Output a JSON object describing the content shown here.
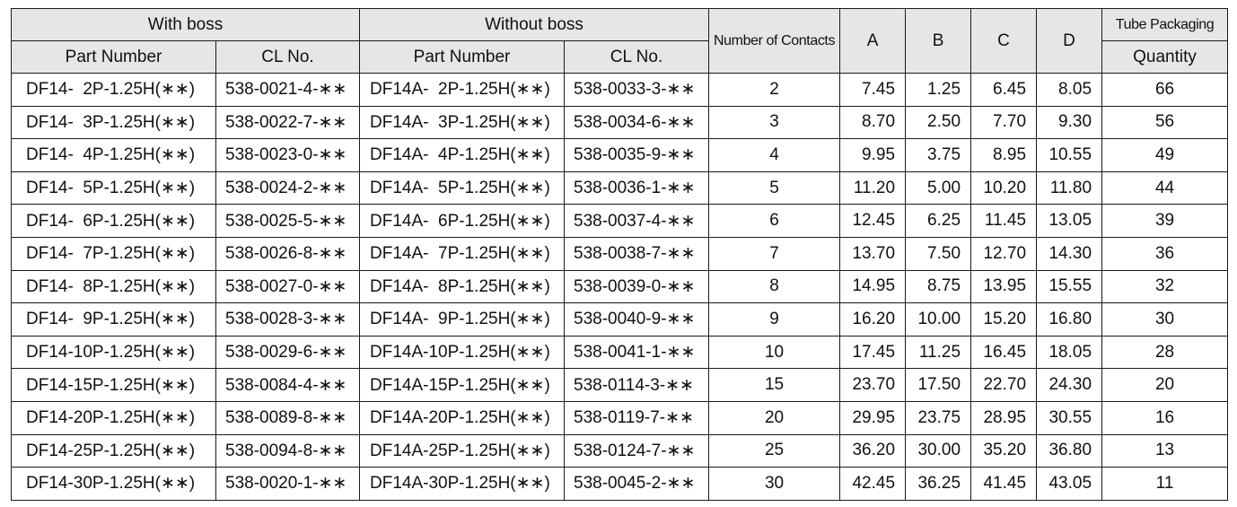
{
  "headers": {
    "with_boss": "With boss",
    "without_boss": "Without boss",
    "part_number": "Part Number",
    "cl_no": "CL No.",
    "part_number_2": "Part Number",
    "cl_no_2": "CL No.",
    "number_of_contacts": "Number of Contacts",
    "a": "A",
    "b": "B",
    "c": "C",
    "d": "D",
    "tube_packaging": "Tube Packaging",
    "quantity": "Quantity"
  },
  "rows": [
    {
      "pn_boss": "DF14-  2P-1.25H(∗∗)",
      "cl_boss": "538-0021-4-∗∗",
      "pn_noboss": "DF14A-  2P-1.25H(∗∗)",
      "cl_noboss": "538-0033-3-∗∗",
      "contacts": "2",
      "a": "7.45",
      "b": "1.25",
      "c": "6.45",
      "d": "8.05",
      "qty": "66"
    },
    {
      "pn_boss": "DF14-  3P-1.25H(∗∗)",
      "cl_boss": "538-0022-7-∗∗",
      "pn_noboss": "DF14A-  3P-1.25H(∗∗)",
      "cl_noboss": "538-0034-6-∗∗",
      "contacts": "3",
      "a": "8.70",
      "b": "2.50",
      "c": "7.70",
      "d": "9.30",
      "qty": "56"
    },
    {
      "pn_boss": "DF14-  4P-1.25H(∗∗)",
      "cl_boss": "538-0023-0-∗∗",
      "pn_noboss": "DF14A-  4P-1.25H(∗∗)",
      "cl_noboss": "538-0035-9-∗∗",
      "contacts": "4",
      "a": "9.95",
      "b": "3.75",
      "c": "8.95",
      "d": "10.55",
      "qty": "49"
    },
    {
      "pn_boss": "DF14-  5P-1.25H(∗∗)",
      "cl_boss": "538-0024-2-∗∗",
      "pn_noboss": "DF14A-  5P-1.25H(∗∗)",
      "cl_noboss": "538-0036-1-∗∗",
      "contacts": "5",
      "a": "11.20",
      "b": "5.00",
      "c": "10.20",
      "d": "11.80",
      "qty": "44"
    },
    {
      "pn_boss": "DF14-  6P-1.25H(∗∗)",
      "cl_boss": "538-0025-5-∗∗",
      "pn_noboss": "DF14A-  6P-1.25H(∗∗)",
      "cl_noboss": "538-0037-4-∗∗",
      "contacts": "6",
      "a": "12.45",
      "b": "6.25",
      "c": "11.45",
      "d": "13.05",
      "qty": "39"
    },
    {
      "pn_boss": "DF14-  7P-1.25H(∗∗)",
      "cl_boss": "538-0026-8-∗∗",
      "pn_noboss": "DF14A-  7P-1.25H(∗∗)",
      "cl_noboss": "538-0038-7-∗∗",
      "contacts": "7",
      "a": "13.70",
      "b": "7.50",
      "c": "12.70",
      "d": "14.30",
      "qty": "36"
    },
    {
      "pn_boss": "DF14-  8P-1.25H(∗∗)",
      "cl_boss": "538-0027-0-∗∗",
      "pn_noboss": "DF14A-  8P-1.25H(∗∗)",
      "cl_noboss": "538-0039-0-∗∗",
      "contacts": "8",
      "a": "14.95",
      "b": "8.75",
      "c": "13.95",
      "d": "15.55",
      "qty": "32"
    },
    {
      "pn_boss": "DF14-  9P-1.25H(∗∗)",
      "cl_boss": "538-0028-3-∗∗",
      "pn_noboss": "DF14A-  9P-1.25H(∗∗)",
      "cl_noboss": "538-0040-9-∗∗",
      "contacts": "9",
      "a": "16.20",
      "b": "10.00",
      "c": "15.20",
      "d": "16.80",
      "qty": "30"
    },
    {
      "pn_boss": "DF14-10P-1.25H(∗∗)",
      "cl_boss": "538-0029-6-∗∗",
      "pn_noboss": "DF14A-10P-1.25H(∗∗)",
      "cl_noboss": "538-0041-1-∗∗",
      "contacts": "10",
      "a": "17.45",
      "b": "11.25",
      "c": "16.45",
      "d": "18.05",
      "qty": "28"
    },
    {
      "pn_boss": "DF14-15P-1.25H(∗∗)",
      "cl_boss": "538-0084-4-∗∗",
      "pn_noboss": "DF14A-15P-1.25H(∗∗)",
      "cl_noboss": "538-0114-3-∗∗",
      "contacts": "15",
      "a": "23.70",
      "b": "17.50",
      "c": "22.70",
      "d": "24.30",
      "qty": "20"
    },
    {
      "pn_boss": "DF14-20P-1.25H(∗∗)",
      "cl_boss": "538-0089-8-∗∗",
      "pn_noboss": "DF14A-20P-1.25H(∗∗)",
      "cl_noboss": "538-0119-7-∗∗",
      "contacts": "20",
      "a": "29.95",
      "b": "23.75",
      "c": "28.95",
      "d": "30.55",
      "qty": "16"
    },
    {
      "pn_boss": "DF14-25P-1.25H(∗∗)",
      "cl_boss": "538-0094-8-∗∗",
      "pn_noboss": "DF14A-25P-1.25H(∗∗)",
      "cl_noboss": "538-0124-7-∗∗",
      "contacts": "25",
      "a": "36.20",
      "b": "30.00",
      "c": "35.20",
      "d": "36.80",
      "qty": "13"
    },
    {
      "pn_boss": "DF14-30P-1.25H(∗∗)",
      "cl_boss": "538-0020-1-∗∗",
      "pn_noboss": "DF14A-30P-1.25H(∗∗)",
      "cl_noboss": "538-0045-2-∗∗",
      "contacts": "30",
      "a": "42.45",
      "b": "36.25",
      "c": "41.45",
      "d": "43.05",
      "qty": "11"
    }
  ]
}
